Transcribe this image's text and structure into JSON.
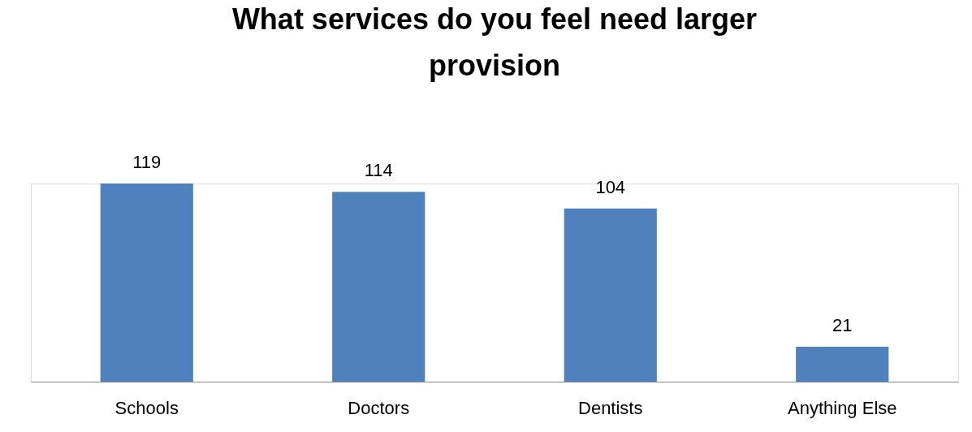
{
  "chart_data": {
    "type": "bar",
    "title": "What services do you feel need larger provision",
    "categories": [
      "Schools",
      "Doctors",
      "Dentists",
      "Anything Else"
    ],
    "values": [
      119,
      114,
      104,
      21
    ],
    "color": "#4f81bd",
    "data_labels": true,
    "grid": false
  }
}
